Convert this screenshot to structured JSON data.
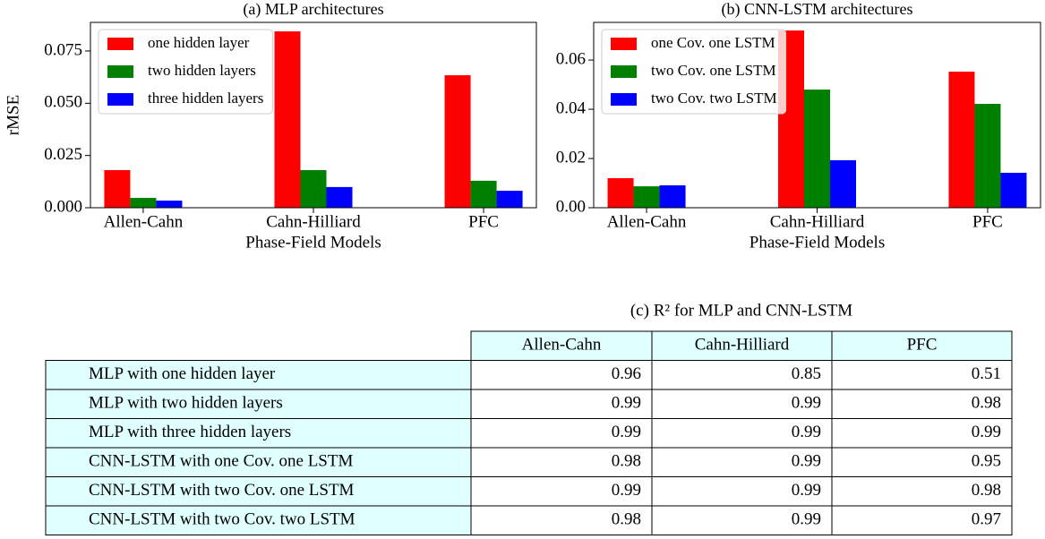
{
  "chart_data": [
    {
      "type": "bar",
      "title": "(a) MLP architectures",
      "ylabel": "rMSE",
      "xlabel": "Phase-Field Models",
      "categories": [
        "Allen-Cahn",
        "Cahn-Hilliard",
        "PFC"
      ],
      "series": [
        {
          "name": "one hidden layer",
          "color": "#ff0000",
          "values": [
            0.018,
            0.0844,
            0.0634
          ]
        },
        {
          "name": "two hidden layers",
          "color": "#008000",
          "values": [
            0.0047,
            0.018,
            0.0129
          ]
        },
        {
          "name": "three hidden layers",
          "color": "#0000ff",
          "values": [
            0.0034,
            0.0099,
            0.0081
          ]
        }
      ],
      "ylim": [
        0,
        0.0887
      ],
      "yticks": [
        {
          "value": 0,
          "label": "0.000"
        },
        {
          "value": 0.025,
          "label": "0.025"
        },
        {
          "value": 0.05,
          "label": "0.050"
        },
        {
          "value": 0.075,
          "label": "0.075"
        }
      ],
      "legend": "upper left"
    },
    {
      "type": "bar",
      "title": "(b) CNN-LSTM architectures",
      "xlabel": "Phase-Field Models",
      "categories": [
        "Allen-Cahn",
        "Cahn-Hilliard",
        "PFC"
      ],
      "series": [
        {
          "name": "one Cov. one LSTM",
          "color": "#ff0000",
          "values": [
            0.012,
            0.072,
            0.0553
          ]
        },
        {
          "name": "two Cov. one LSTM",
          "color": "#008000",
          "values": [
            0.0087,
            0.048,
            0.0422
          ]
        },
        {
          "name": "two Cov. two LSTM",
          "color": "#0000ff",
          "values": [
            0.0091,
            0.0193,
            0.0142
          ]
        }
      ],
      "ylim": [
        0,
        0.0753
      ],
      "yticks": [
        {
          "value": 0,
          "label": "0.00"
        },
        {
          "value": 0.02,
          "label": "0.02"
        },
        {
          "value": 0.04,
          "label": "0.04"
        },
        {
          "value": 0.06,
          "label": "0.06"
        }
      ],
      "legend": "upper left"
    }
  ],
  "table": {
    "title": "(c) R² for MLP and CNN-LSTM",
    "columns": [
      "Allen-Cahn",
      "Cahn-Hilliard",
      "PFC"
    ],
    "rows": [
      {
        "label": "MLP with one hidden layer",
        "values": [
          0.96,
          0.85,
          0.51
        ]
      },
      {
        "label": "MLP with two hidden layers",
        "values": [
          0.99,
          0.99,
          0.98
        ]
      },
      {
        "label": "MLP with three hidden layers",
        "values": [
          0.99,
          0.99,
          0.99
        ]
      },
      {
        "label": "CNN-LSTM with one Cov. one LSTM",
        "values": [
          0.98,
          0.99,
          0.95
        ]
      },
      {
        "label": "CNN-LSTM with two Cov. one LSTM",
        "values": [
          0.99,
          0.99,
          0.98
        ]
      },
      {
        "label": "CNN-LSTM with two Cov. two LSTM",
        "values": [
          0.98,
          0.99,
          0.97
        ]
      }
    ]
  }
}
